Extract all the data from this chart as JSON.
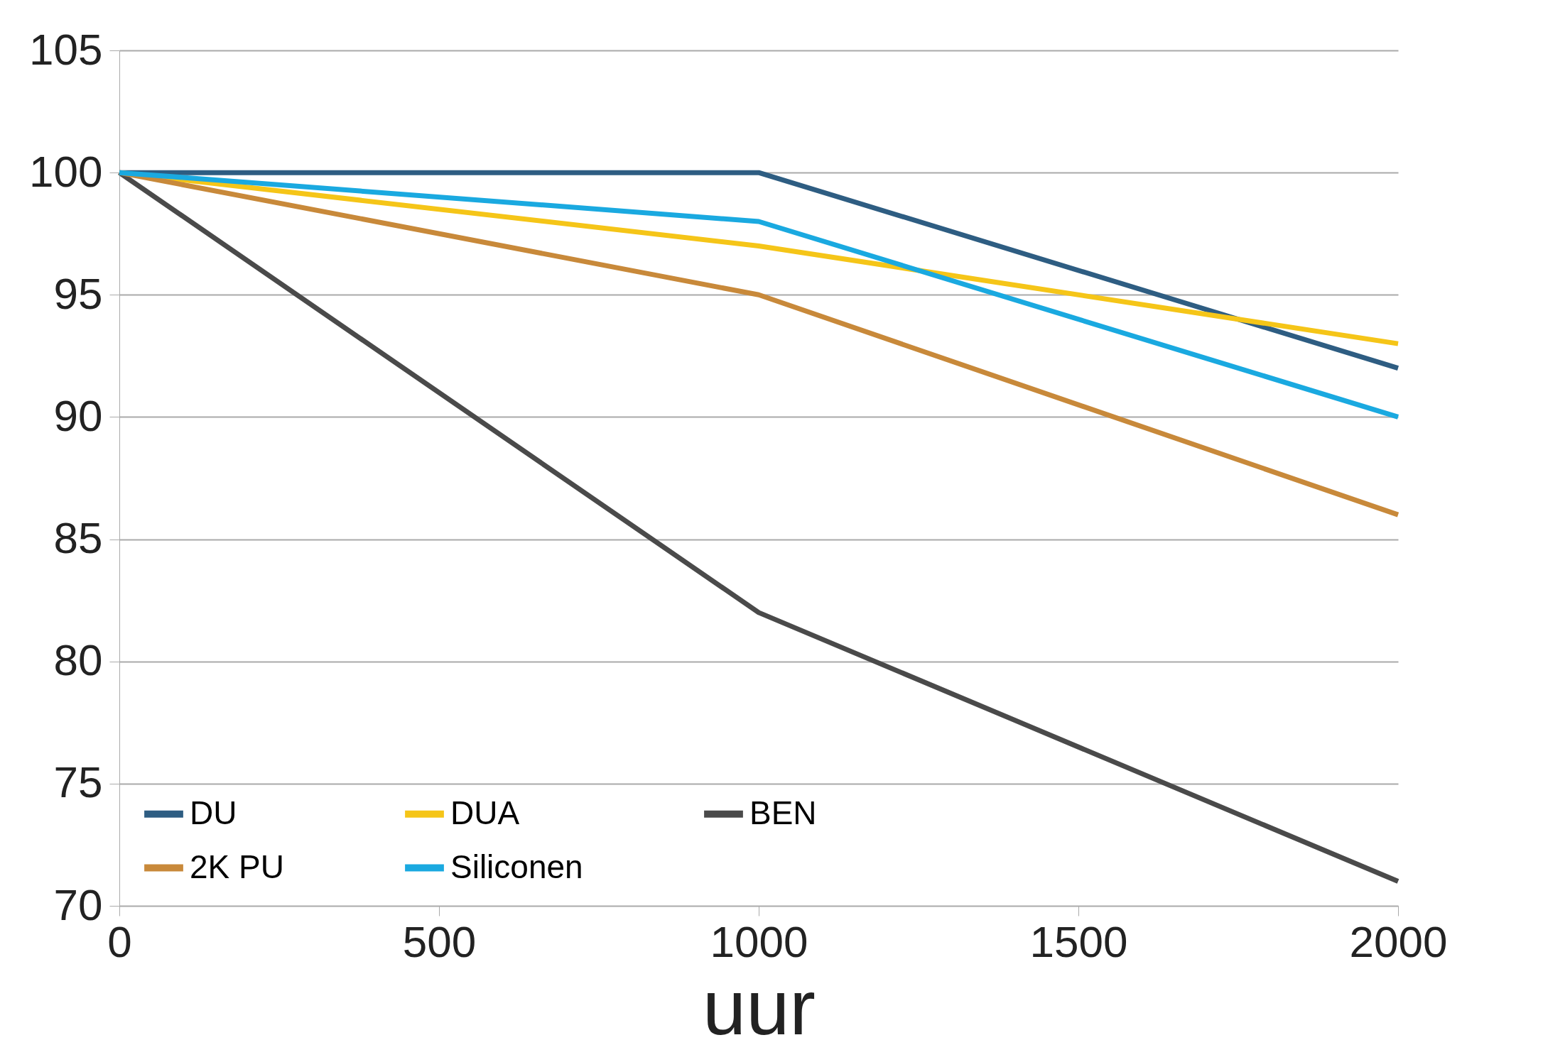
{
  "chart_data": {
    "type": "line",
    "xlabel": "uur",
    "x": [
      0,
      1000,
      2000
    ],
    "series": [
      {
        "name": "DU",
        "color": "#2e5d82",
        "values": [
          100,
          100,
          92
        ]
      },
      {
        "name": "DUA",
        "color": "#f5c518",
        "values": [
          100,
          97,
          93
        ]
      },
      {
        "name": "BEN",
        "color": "#4a4a4a",
        "values": [
          100,
          82,
          71
        ]
      },
      {
        "name": "2K PU",
        "color": "#c8893a",
        "values": [
          100,
          95,
          86
        ]
      },
      {
        "name": "Siliconen",
        "color": "#1aa9e0",
        "values": [
          100,
          98,
          90
        ]
      }
    ],
    "xlim": [
      0,
      2000
    ],
    "xticks": [
      0,
      500,
      1000,
      1500,
      2000
    ],
    "ylim": [
      70,
      105
    ],
    "yticks": [
      70,
      75,
      80,
      85,
      90,
      95,
      100,
      105
    ],
    "grid": "y",
    "legend": "bottom left",
    "marker": "none",
    "line_style": "solid"
  }
}
